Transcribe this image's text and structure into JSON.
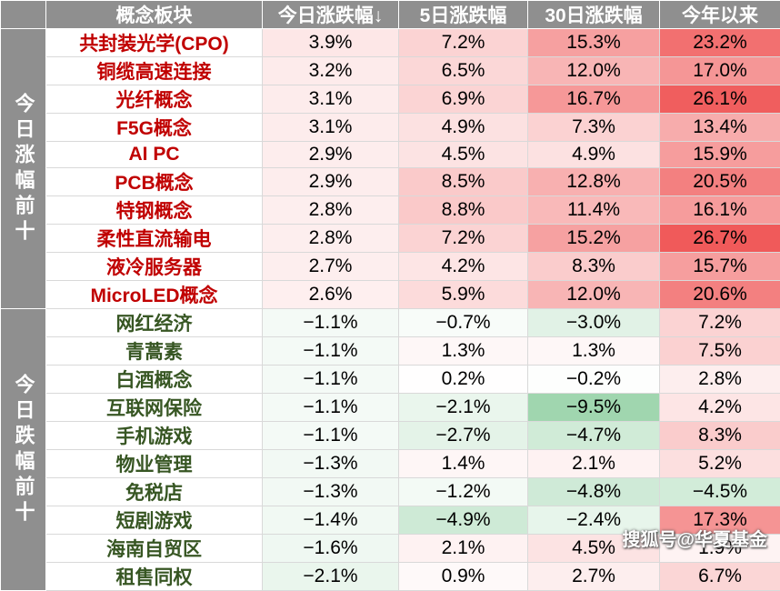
{
  "table": {
    "header": [
      "概念板块",
      "今日涨跌幅↓",
      "5日涨跌幅",
      "30日涨跌幅",
      "今年以来"
    ],
    "groups": [
      {
        "label": "今日涨幅前十",
        "rows": [
          [
            "共封装光学(CPO)",
            "3.9%",
            "7.2%",
            "15.3%",
            "23.2%"
          ],
          [
            "铜缆高速连接",
            "3.2%",
            "6.5%",
            "12.0%",
            "17.0%"
          ],
          [
            "光纤概念",
            "3.1%",
            "6.9%",
            "16.7%",
            "26.1%"
          ],
          [
            "F5G概念",
            "3.1%",
            "4.9%",
            "7.3%",
            "13.4%"
          ],
          [
            "AI PC",
            "2.9%",
            "4.5%",
            "4.9%",
            "15.9%"
          ],
          [
            "PCB概念",
            "2.9%",
            "8.5%",
            "12.8%",
            "20.5%"
          ],
          [
            "特钢概念",
            "2.8%",
            "8.8%",
            "11.4%",
            "16.1%"
          ],
          [
            "柔性直流输电",
            "2.8%",
            "7.2%",
            "15.2%",
            "26.7%"
          ],
          [
            "液冷服务器",
            "2.7%",
            "4.2%",
            "8.3%",
            "15.7%"
          ],
          [
            "MicroLED概念",
            "2.6%",
            "5.9%",
            "12.0%",
            "20.6%"
          ]
        ]
      },
      {
        "label": "今日跌幅前十",
        "rows": [
          [
            "网红经济",
            "−1.1%",
            "−0.7%",
            "−3.0%",
            "7.2%"
          ],
          [
            "青蒿素",
            "−1.1%",
            "1.3%",
            "1.3%",
            "7.5%"
          ],
          [
            "白酒概念",
            "−1.1%",
            "0.2%",
            "−0.2%",
            "2.8%"
          ],
          [
            "互联网保险",
            "−1.1%",
            "−2.1%",
            "−9.5%",
            "4.2%"
          ],
          [
            "手机游戏",
            "−1.1%",
            "−2.7%",
            "−4.7%",
            "8.3%"
          ],
          [
            "物业管理",
            "−1.3%",
            "1.4%",
            "2.1%",
            "5.2%"
          ],
          [
            "免税店",
            "−1.3%",
            "−1.2%",
            "−4.8%",
            "−4.5%"
          ],
          [
            "短剧游戏",
            "−1.4%",
            "−4.9%",
            "−2.4%",
            "17.3%"
          ],
          [
            "海南自贸区",
            "−1.6%",
            "2.1%",
            "4.5%",
            "1.9%"
          ],
          [
            "租售同权",
            "−2.1%",
            "0.9%",
            "2.7%",
            "6.7%"
          ]
        ]
      }
    ]
  },
  "watermark": "搜狐号@华夏基金"
}
